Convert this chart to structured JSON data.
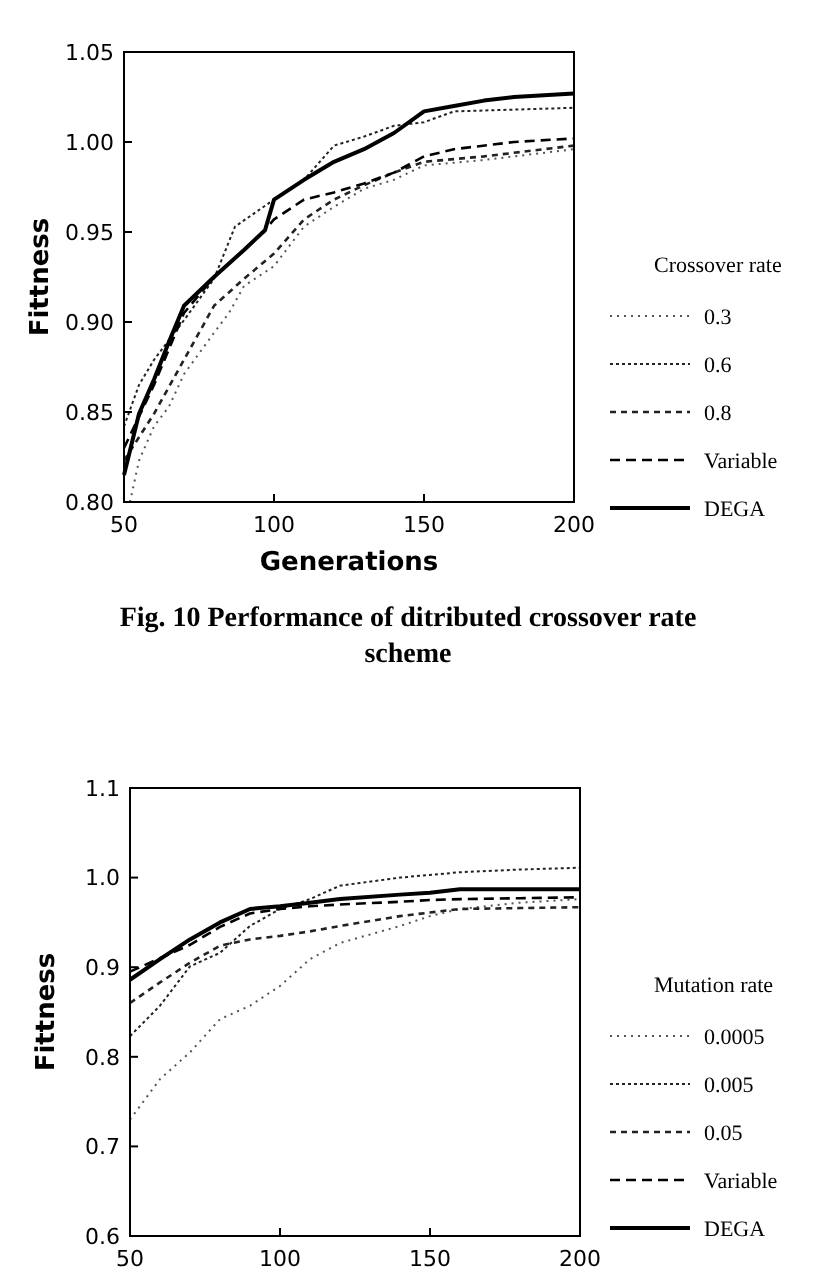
{
  "chart_data": [
    {
      "type": "line",
      "xlabel": "Generations",
      "ylabel": "Fittness",
      "legend_title": "Crossover rate",
      "legend": "right",
      "grid": false,
      "x": [
        50,
        55,
        60,
        65,
        70,
        80,
        90,
        97,
        100,
        110,
        120,
        130,
        140,
        150,
        160,
        170,
        180,
        200
      ],
      "xlim": [
        50,
        200
      ],
      "xticks": [
        50,
        100,
        150,
        200
      ],
      "ylim": [
        0.8,
        1.05
      ],
      "yticks": [
        {
          "value": 0.8,
          "label": "0.80"
        },
        {
          "value": 0.85,
          "label": "0.85"
        },
        {
          "value": 0.9,
          "label": "0.90"
        },
        {
          "value": 0.95,
          "label": "0.95"
        },
        {
          "value": 1,
          "label": "1.00"
        },
        {
          "value": 1.05,
          "label": "1.05"
        }
      ],
      "series": [
        {
          "name": "0.3",
          "color": "#555555",
          "line_style": "dotted",
          "x": [
            52,
            55,
            60,
            65,
            70,
            80,
            85,
            90,
            100,
            110,
            120,
            130,
            140,
            150,
            170,
            200
          ],
          "values": [
            0.8,
            0.823,
            0.842,
            0.853,
            0.871,
            0.894,
            0.905,
            0.92,
            0.931,
            0.953,
            0.964,
            0.974,
            0.979,
            0.987,
            0.99,
            0.996
          ]
        },
        {
          "name": "0.6",
          "color": "#222222",
          "line_style": "dotted",
          "x": [
            50,
            55,
            60,
            70,
            80,
            87,
            100,
            110,
            120,
            130,
            140,
            150,
            160,
            200
          ],
          "values": [
            0.842,
            0.865,
            0.879,
            0.901,
            0.924,
            0.953,
            0.968,
            0.979,
            0.998,
            1.003,
            1.009,
            1.011,
            1.017,
            1.019
          ]
        },
        {
          "name": "0.8",
          "color": "#222222",
          "line_style": "dashed",
          "x": [
            50,
            60,
            70,
            80,
            90,
            100,
            110,
            120,
            130,
            140,
            150,
            170,
            200
          ],
          "values": [
            0.823,
            0.849,
            0.879,
            0.909,
            0.924,
            0.938,
            0.957,
            0.968,
            0.976,
            0.983,
            0.989,
            0.992,
            0.998
          ]
        },
        {
          "name": "Variable",
          "color": "#000000",
          "line_style": "dashed",
          "x": [
            50,
            60,
            70,
            80,
            90,
            97,
            100,
            110,
            120,
            130,
            140,
            150,
            160,
            180,
            200
          ],
          "values": [
            0.83,
            0.865,
            0.905,
            0.925,
            0.94,
            0.951,
            0.957,
            0.968,
            0.972,
            0.977,
            0.983,
            0.992,
            0.996,
            1.0,
            1.002
          ]
        },
        {
          "name": "DEGA",
          "color": "#000000",
          "line_style": "solid",
          "values": [
            0.815,
            0.849,
            0.868,
            0.889,
            0.909,
            0.925,
            0.94,
            0.951,
            0.968,
            0.979,
            0.989,
            0.996,
            1.005,
            1.017,
            1.02,
            1.023,
            1.025,
            1.027
          ]
        }
      ],
      "annotations": [
        "Fig. 10 Performance of ditributed crossover rate scheme"
      ]
    },
    {
      "type": "line",
      "ylabel": "Fittness",
      "legend_title": "Mutation rate",
      "legend": "right",
      "grid": false,
      "x": [
        50,
        60,
        70,
        80,
        90,
        100,
        110,
        120,
        140,
        150,
        160,
        180,
        200
      ],
      "xlim": [
        50,
        200
      ],
      "xticks": [
        50,
        100,
        150,
        200
      ],
      "ylim": [
        0.6,
        1.1
      ],
      "yticks": [
        {
          "value": 0.6,
          "label": "0.6"
        },
        {
          "value": 0.7,
          "label": "0.7"
        },
        {
          "value": 0.8,
          "label": "0.8"
        },
        {
          "value": 0.9,
          "label": "0.9"
        },
        {
          "value": 1,
          "label": "1.0"
        },
        {
          "value": 1.1,
          "label": "1.1"
        }
      ],
      "series": [
        {
          "name": "0.0005",
          "color": "#555555",
          "line_style": "dotted",
          "values": [
            0.73,
            0.775,
            0.805,
            0.842,
            0.857,
            0.879,
            0.909,
            0.927,
            0.946,
            0.957,
            0.965,
            0.972,
            0.976
          ]
        },
        {
          "name": "0.005",
          "color": "#222222",
          "line_style": "dotted",
          "values": [
            0.823,
            0.857,
            0.901,
            0.916,
            0.946,
            0.965,
            0.976,
            0.991,
            1.0,
            1.003,
            1.006,
            1.009,
            1.011
          ]
        },
        {
          "name": "0.05",
          "color": "#222222",
          "line_style": "dashed",
          "values": [
            0.86,
            0.883,
            0.905,
            0.924,
            0.931,
            0.935,
            0.94,
            0.946,
            0.957,
            0.961,
            0.965,
            0.966,
            0.967
          ]
        },
        {
          "name": "Variable",
          "color": "#000000",
          "line_style": "dashed",
          "values": [
            0.895,
            0.91,
            0.925,
            0.945,
            0.96,
            0.965,
            0.968,
            0.97,
            0.973,
            0.975,
            0.976,
            0.977,
            0.978
          ]
        },
        {
          "name": "DEGA",
          "color": "#000000",
          "line_style": "solid",
          "values": [
            0.886,
            0.909,
            0.931,
            0.95,
            0.965,
            0.968,
            0.972,
            0.976,
            0.981,
            0.983,
            0.987,
            0.987,
            0.987
          ]
        }
      ]
    }
  ]
}
